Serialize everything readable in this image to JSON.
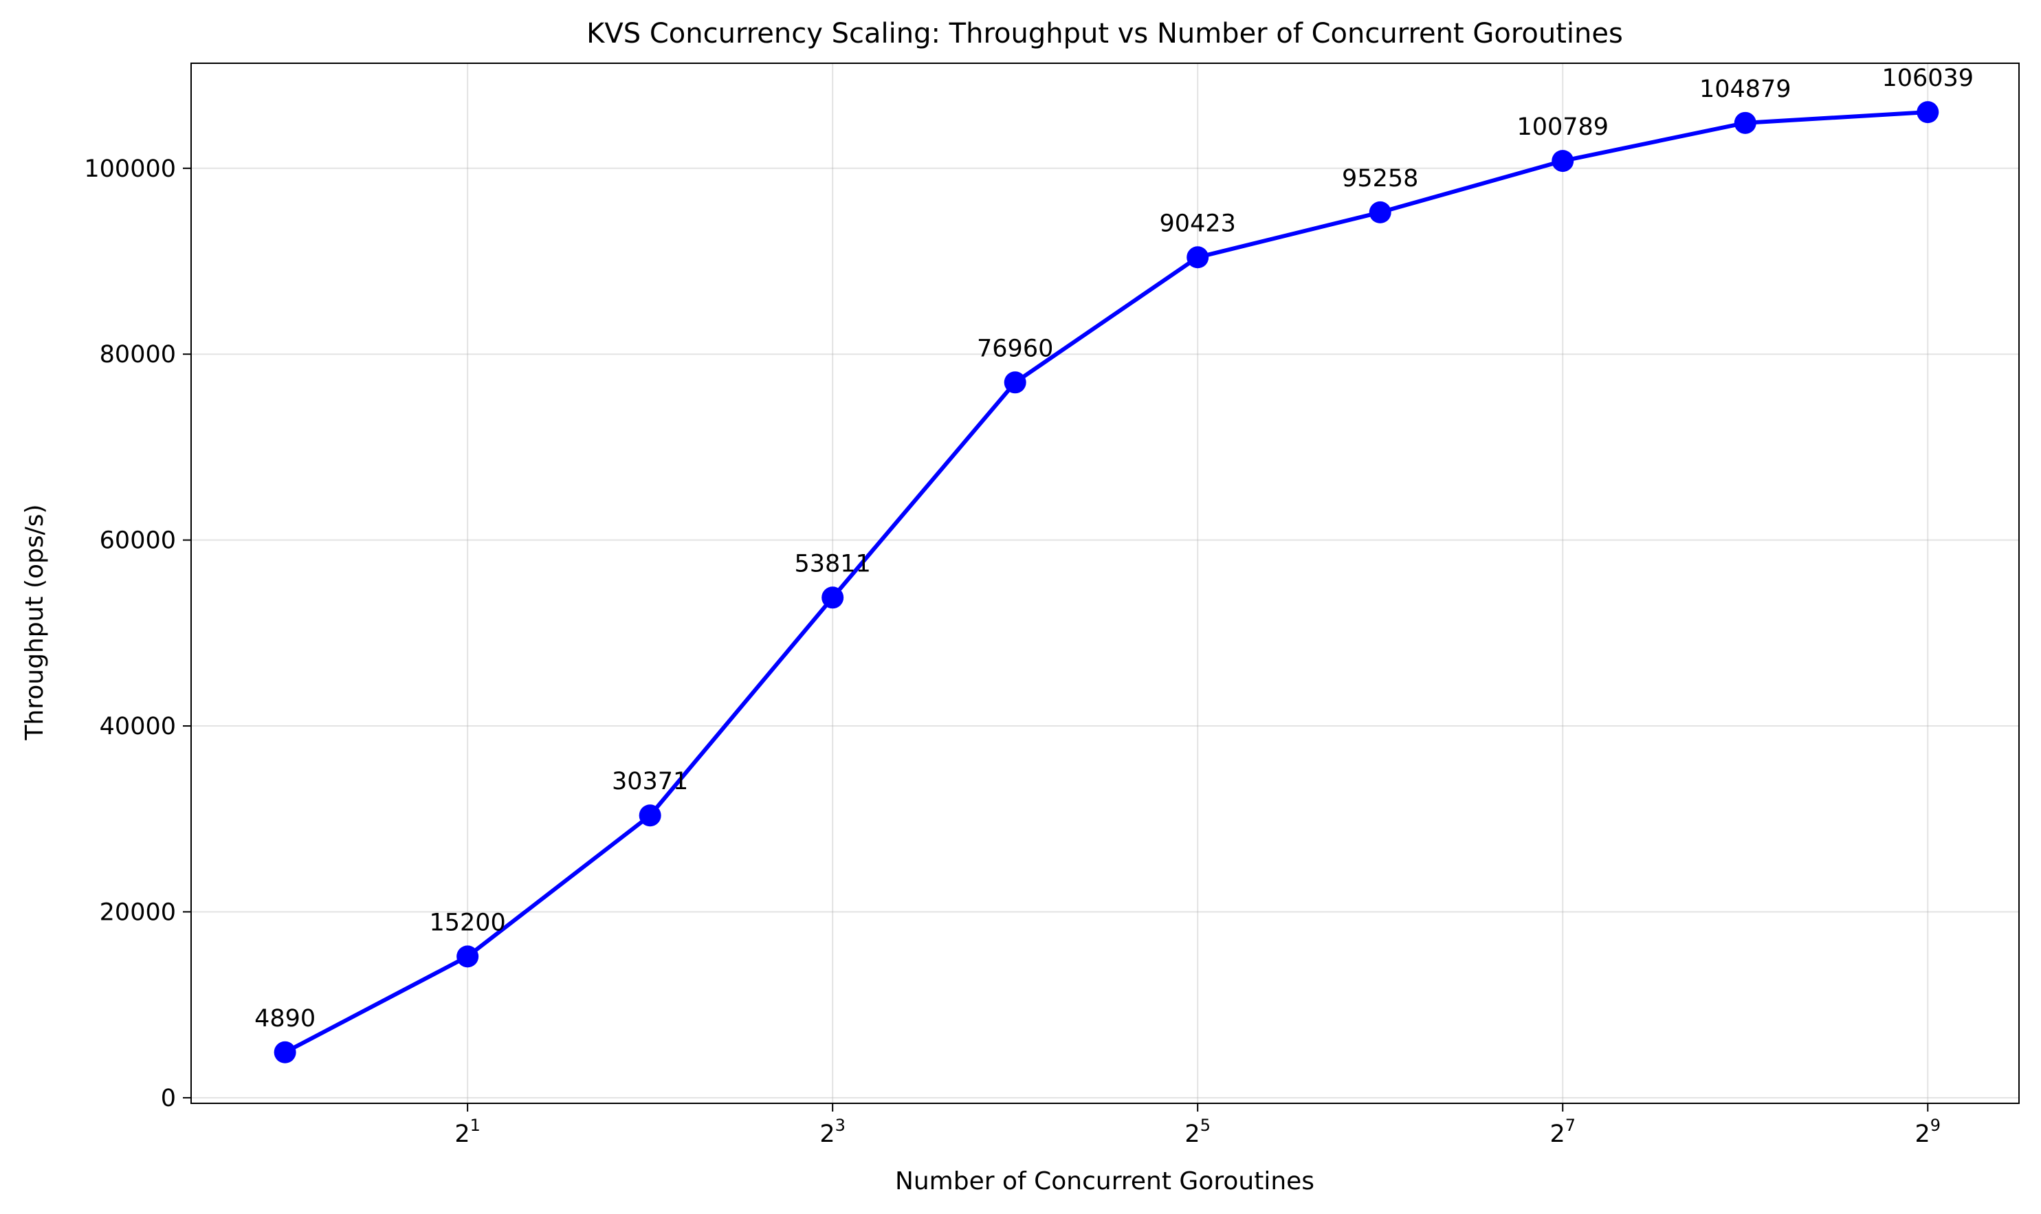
{
  "chart_data": {
    "type": "line",
    "title": "KVS Concurrency Scaling: Throughput vs Number of Concurrent Goroutines",
    "xlabel": "Number of Concurrent Goroutines",
    "ylabel": "Throughput (ops/s)",
    "x_scale": "log2",
    "xlim": [
      0.7,
      724
    ],
    "ylim": [
      -600,
      111300
    ],
    "x_ticks": [
      {
        "value": 2,
        "base": "2",
        "exp": "1"
      },
      {
        "value": 8,
        "base": "2",
        "exp": "3"
      },
      {
        "value": 32,
        "base": "2",
        "exp": "5"
      },
      {
        "value": 128,
        "base": "2",
        "exp": "7"
      },
      {
        "value": 512,
        "base": "2",
        "exp": "9"
      }
    ],
    "y_ticks": [
      {
        "value": 0,
        "label": "0"
      },
      {
        "value": 20000,
        "label": "20000"
      },
      {
        "value": 40000,
        "label": "40000"
      },
      {
        "value": 60000,
        "label": "60000"
      },
      {
        "value": 80000,
        "label": "80000"
      },
      {
        "value": 100000,
        "label": "100000"
      }
    ],
    "grid": true,
    "legend": "none",
    "series": [
      {
        "color": "#0000ff",
        "marker": "circle",
        "x": [
          1,
          2,
          4,
          8,
          16,
          32,
          64,
          128,
          256,
          512
        ],
        "y": [
          4890,
          15200,
          30371,
          53811,
          76960,
          90423,
          95258,
          100789,
          104879,
          106039
        ],
        "labels": [
          "4890",
          "15200",
          "30371",
          "53811",
          "76960",
          "90423",
          "95258",
          "100789",
          "104879",
          "106039"
        ]
      }
    ]
  }
}
